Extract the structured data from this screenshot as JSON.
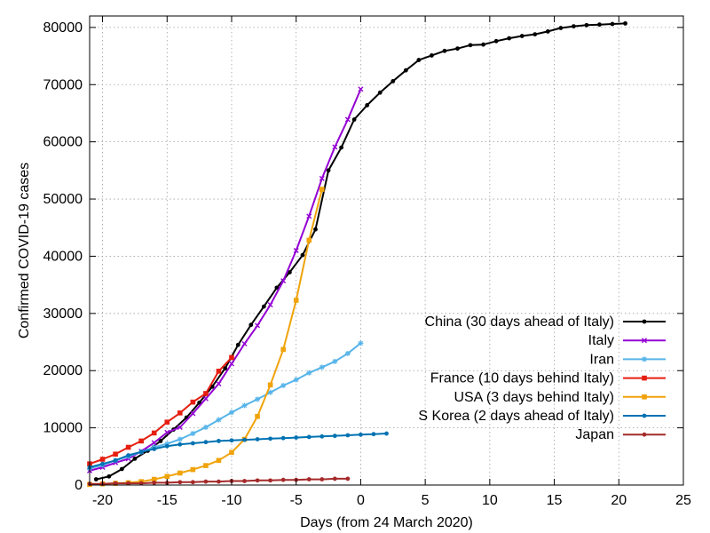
{
  "chart_data": {
    "type": "line",
    "title": "",
    "xlabel": "Days (from 24 March 2020)",
    "ylabel": "Confirmed COVID-19 cases",
    "xlim": [
      -21,
      25
    ],
    "ylim": [
      0,
      82000
    ],
    "x_ticks": [
      -20,
      -15,
      -10,
      -5,
      0,
      5,
      10,
      15,
      20,
      25
    ],
    "y_ticks": [
      0,
      10000,
      20000,
      30000,
      40000,
      50000,
      60000,
      70000,
      80000
    ],
    "grid": true,
    "legend_position": "bottom-right",
    "series": [
      {
        "name": "China (30 days ahead of Italy)",
        "color": "#000000",
        "marker": "dot",
        "x": [
          -20.5,
          -19.5,
          -18.5,
          -17.5,
          -16.5,
          -15.5,
          -14.5,
          -13.5,
          -12.5,
          -11.5,
          -10.5,
          -9.5,
          -8.5,
          -7.5,
          -6.5,
          -5.5,
          -4.5,
          -3.5,
          -2.5,
          -1.5,
          -0.5,
          0.5,
          1.5,
          2.5,
          3.5,
          4.5,
          5.5,
          6.5,
          7.5,
          8.5,
          9.5,
          10.5,
          11.5,
          12.5,
          13.5,
          14.5,
          15.5,
          16.5,
          17.5,
          18.5,
          19.5,
          20.5
        ],
        "y": [
          1000,
          1500,
          2800,
          4600,
          6000,
          7700,
          9700,
          11800,
          14400,
          17200,
          20400,
          24500,
          28000,
          31200,
          34500,
          37200,
          40200,
          44700,
          55000,
          59000,
          63900,
          66400,
          68600,
          70600,
          72500,
          74300,
          75100,
          75900,
          76300,
          76900,
          77000,
          77600,
          78100,
          78500,
          78800,
          79300,
          79900,
          80200,
          80400,
          80500,
          80600,
          80700
        ]
      },
      {
        "name": "Italy",
        "color": "#9400d3",
        "marker": "cross",
        "x": [
          -21,
          -20,
          -19,
          -18,
          -17,
          -16,
          -15,
          -14,
          -13,
          -12,
          -11,
          -10,
          -9,
          -8,
          -7,
          -6,
          -5,
          -4,
          -3,
          -2,
          -1,
          0
        ],
        "y": [
          2500,
          3100,
          3900,
          4600,
          5900,
          7400,
          9200,
          10100,
          12500,
          15100,
          17700,
          21200,
          24700,
          27900,
          31500,
          35700,
          41000,
          47000,
          53600,
          59100,
          63900,
          69200
        ]
      },
      {
        "name": "Iran",
        "color": "#56b4e9",
        "marker": "star",
        "x": [
          -21,
          -20,
          -19,
          -18,
          -17,
          -16,
          -15,
          -14,
          -13,
          -12,
          -11,
          -10,
          -9,
          -8,
          -7,
          -6,
          -5,
          -4,
          -3,
          -2,
          -1,
          0
        ],
        "y": [
          2900,
          3500,
          4300,
          5000,
          5800,
          6600,
          7200,
          8000,
          9000,
          10100,
          11400,
          12700,
          13900,
          15000,
          16200,
          17400,
          18400,
          19600,
          20600,
          21600,
          23000,
          24800
        ]
      },
      {
        "name": "France (10 days behind Italy)",
        "color": "#e51e10",
        "marker": "square",
        "x": [
          -21,
          -20,
          -19,
          -18,
          -17,
          -16,
          -15,
          -14,
          -13,
          -12,
          -11,
          -10
        ],
        "y": [
          3700,
          4500,
          5400,
          6600,
          7700,
          9100,
          11000,
          12600,
          14500,
          16000,
          19900,
          22300
        ]
      },
      {
        "name": "USA (3 days behind Italy)",
        "color": "#f0a30a",
        "marker": "square",
        "x": [
          -21,
          -20,
          -19,
          -18,
          -17,
          -16,
          -15,
          -14,
          -13,
          -12,
          -11,
          -10,
          -9,
          -8,
          -7,
          -6,
          -5,
          -4,
          -3
        ],
        "y": [
          100,
          200,
          300,
          400,
          600,
          1000,
          1500,
          2100,
          2700,
          3400,
          4300,
          5700,
          8000,
          12000,
          17500,
          23700,
          32300,
          42800,
          51700
        ]
      },
      {
        "name": "S Korea (2 days ahead of Italy)",
        "color": "#0072b2",
        "marker": "dot",
        "x": [
          -21,
          -20,
          -19,
          -18,
          -17,
          -16,
          -15,
          -14,
          -13,
          -12,
          -11,
          -10,
          -9,
          -8,
          -7,
          -6,
          -5,
          -4,
          -3,
          -2,
          -1,
          0,
          1,
          2
        ],
        "y": [
          3100,
          3700,
          4300,
          5200,
          5800,
          6300,
          6800,
          7100,
          7300,
          7500,
          7700,
          7800,
          7900,
          8000,
          8100,
          8200,
          8300,
          8400,
          8500,
          8600,
          8700,
          8800,
          8900,
          9000
        ]
      },
      {
        "name": "Japan",
        "color": "#a52a2a",
        "marker": "dot",
        "x": [
          -21,
          -20,
          -19,
          -18,
          -17,
          -16,
          -15,
          -14,
          -13,
          -12,
          -11,
          -10,
          -9,
          -8,
          -7,
          -6,
          -5,
          -4,
          -3,
          -2,
          -1
        ],
        "y": [
          200,
          200,
          300,
          300,
          300,
          400,
          400,
          500,
          500,
          600,
          600,
          700,
          700,
          800,
          800,
          900,
          900,
          1000,
          1000,
          1100,
          1100
        ]
      }
    ]
  }
}
